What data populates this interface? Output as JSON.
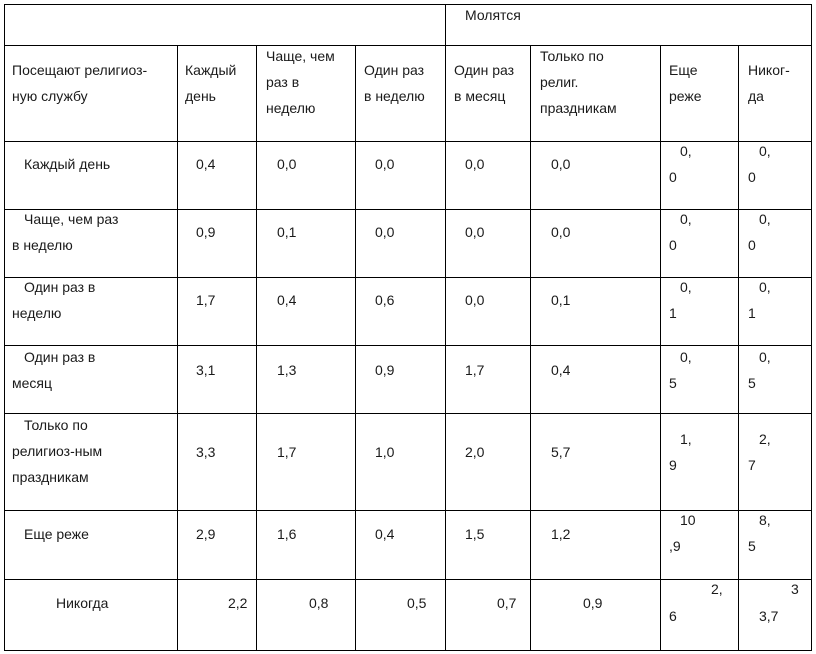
{
  "table": {
    "group_header": "Молятся",
    "row_header": [
      "Посещают религиоз-",
      "ную службу"
    ],
    "columns": [
      [
        "Каждый",
        "день"
      ],
      [
        "Чаще, чем",
        "раз в",
        "неделю"
      ],
      [
        "Один раз",
        "в неделю"
      ],
      [
        "Один раз",
        "в месяц"
      ],
      [
        "Только по",
        "религ.",
        "праздникам"
      ],
      [
        "Еще",
        "реже"
      ],
      [
        "Никог-",
        "да"
      ]
    ],
    "rows": [
      {
        "label": [
          "Каждый день"
        ],
        "values": [
          "0,4",
          "0,0",
          "0,0",
          "0,0",
          "0,0"
        ],
        "wrap6": [
          "0,",
          "0"
        ],
        "wrap7": [
          "0,",
          "0"
        ]
      },
      {
        "label": [
          "Чаще, чем раз",
          "в неделю"
        ],
        "values": [
          "0,9",
          "0,1",
          "0,0",
          "0,0",
          "0,0"
        ],
        "wrap6": [
          "0,",
          "0"
        ],
        "wrap7": [
          "0,",
          "0"
        ]
      },
      {
        "label": [
          "Один раз в",
          "неделю"
        ],
        "values": [
          "1,7",
          "0,4",
          "0,6",
          "0,0",
          "0,1"
        ],
        "wrap6": [
          "0,",
          "1"
        ],
        "wrap7": [
          "0,",
          "1"
        ]
      },
      {
        "label": [
          "Один раз в",
          "месяц"
        ],
        "values": [
          "3,1",
          "1,3",
          "0,9",
          "1,7",
          "0,4"
        ],
        "wrap6": [
          "0,",
          "5"
        ],
        "wrap7": [
          "0,",
          "5"
        ]
      },
      {
        "label": [
          "Только по",
          "религиоз-ным",
          "праздникам"
        ],
        "values": [
          "3,3",
          "1,7",
          "1,0",
          "2,0",
          "5,7"
        ],
        "wrap6": [
          "1,",
          "9"
        ],
        "wrap7": [
          "2,",
          "7"
        ]
      },
      {
        "label": [
          "Еще реже"
        ],
        "values": [
          "2,9",
          "1,6",
          "0,4",
          "1,5",
          "1,2"
        ],
        "wrap6": [
          "10",
          ",9"
        ],
        "wrap7": [
          "8,",
          "5"
        ]
      },
      {
        "label": [
          "Никогда"
        ],
        "values": [
          "2,2",
          "0,8",
          "0,5",
          "0,7",
          "0,9"
        ],
        "wrap6": [
          "2,",
          "6"
        ],
        "wrap7": [
          "3",
          "3,7"
        ]
      }
    ]
  }
}
